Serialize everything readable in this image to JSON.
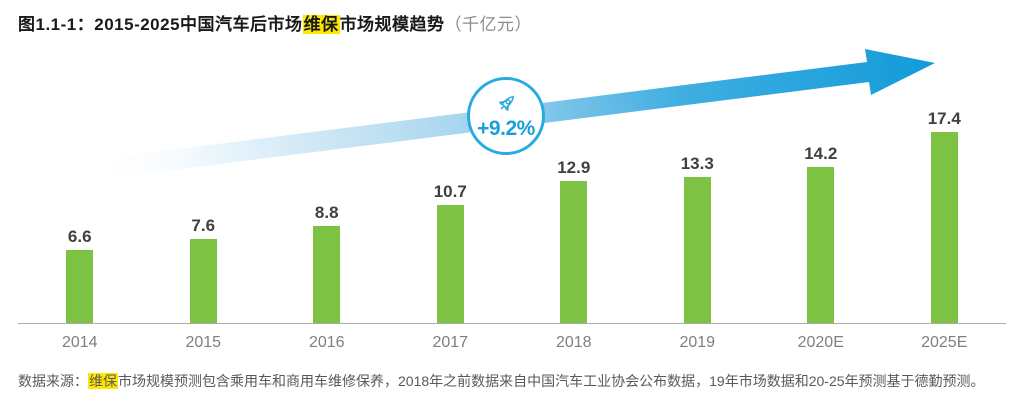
{
  "title": {
    "figure_label": "图1.1-1：",
    "text_before": "2015-2025中国汽车后市场",
    "highlight": "维保",
    "text_after": "市场规模趋势",
    "unit": "（千亿元）"
  },
  "badge": {
    "growth_label": "+9.2%",
    "icon": "rocket-icon",
    "color": "#29ABE2"
  },
  "chart_data": {
    "type": "bar",
    "categories": [
      "2014",
      "2015",
      "2016",
      "2017",
      "2018",
      "2019",
      "2020E",
      "2025E"
    ],
    "values": [
      6.6,
      7.6,
      8.8,
      10.7,
      12.9,
      13.3,
      14.2,
      17.4
    ],
    "title": "2015-2025中国汽车后市场维保市场规模趋势",
    "unit": "千亿元",
    "xlabel": "",
    "ylabel": "",
    "ylim": [
      0,
      20
    ],
    "grid": false,
    "legend": false,
    "bar_color": "#7DC242",
    "value_label_color": "#404040",
    "axis_label_color": "#7F7F7F",
    "annotation": {
      "type": "cagr-arrow",
      "text": "+9.2%",
      "arrow_color_start": "#E8F4FB",
      "arrow_color_end": "#129BD9"
    }
  },
  "source": {
    "prefix": "数据来源：",
    "highlight": "维保",
    "suffix": "市场规模预测包含乘用车和商用车维修保养，2018年之前数据来自中国汽车工业协会公布数据，19年市场数据和20-25年预测基于德勤预测。"
  },
  "colors": {
    "highlight_bg": "#FFE800",
    "axis_line": "#ABABAB"
  }
}
